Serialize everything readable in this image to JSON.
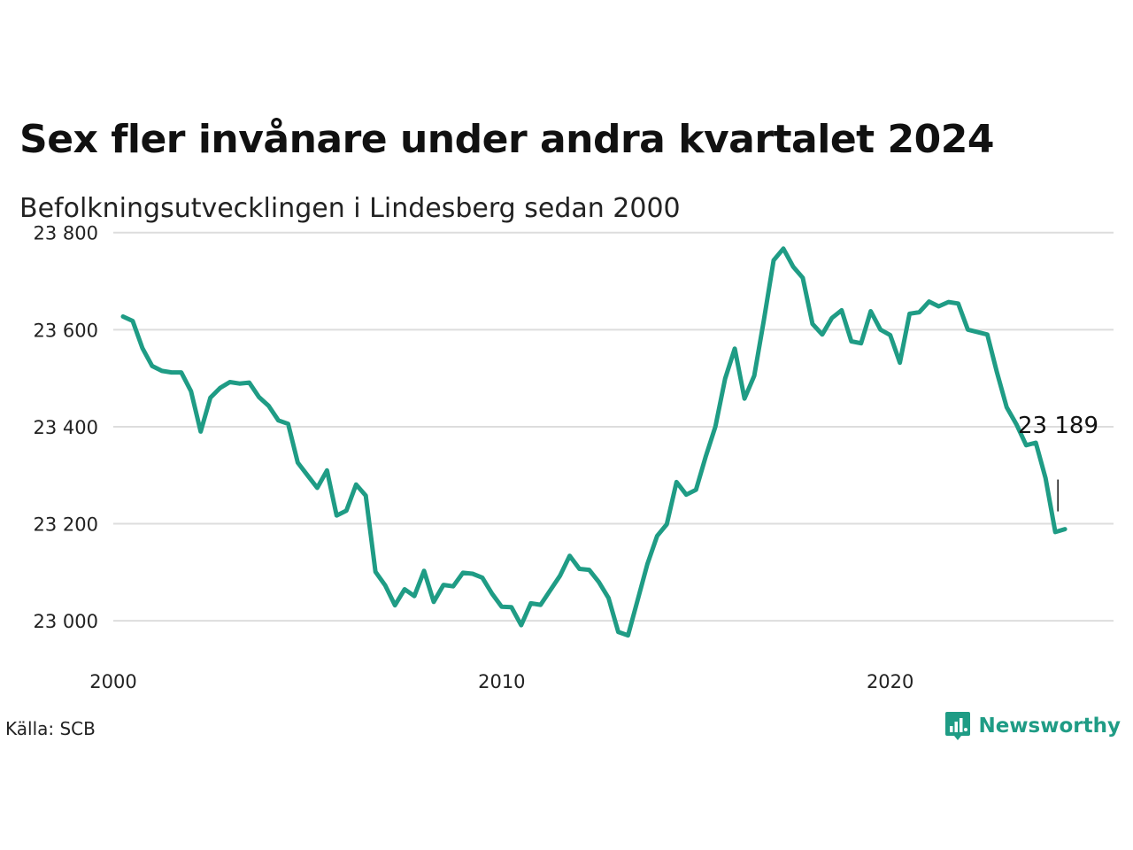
{
  "header": {
    "title": "Sex fler invånare under andra kvartalet 2024",
    "subtitle": "Befolkningsutvecklingen i Lindesberg sedan 2000"
  },
  "footer": {
    "source": "Källa: SCB",
    "brand": "Newsworthy"
  },
  "colors": {
    "line": "#1f9c85",
    "grid": "#dddddd",
    "brand": "#1f9c85"
  },
  "chart_data": {
    "type": "line",
    "title": "Sex fler invånare under andra kvartalet 2024",
    "subtitle": "Befolkningsutvecklingen i Lindesberg sedan 2000",
    "xlim": [
      2000,
      2025.75
    ],
    "ylim": [
      22920,
      23805
    ],
    "x_ticks": [
      {
        "value": 2000,
        "label": "2000"
      },
      {
        "value": 2010,
        "label": "2010"
      },
      {
        "value": 2020,
        "label": "2020"
      }
    ],
    "y_ticks": [
      {
        "value": 23000,
        "label": "23 000"
      },
      {
        "value": 23200,
        "label": "23 200"
      },
      {
        "value": 23400,
        "label": "23 400"
      },
      {
        "value": 23600,
        "label": "23 600"
      },
      {
        "value": 23800,
        "label": "23 800"
      }
    ],
    "grid": true,
    "annotation": {
      "label": "23 189",
      "x": 2024.25,
      "y": 23189
    },
    "series": [
      {
        "values": [
          [
            2000.25,
            23627
          ],
          [
            2000.5,
            23618
          ],
          [
            2000.75,
            23562
          ],
          [
            2001.0,
            23525
          ],
          [
            2001.25,
            23515
          ],
          [
            2001.5,
            23512
          ],
          [
            2001.75,
            23512
          ],
          [
            2002.0,
            23473
          ],
          [
            2002.25,
            23390
          ],
          [
            2002.5,
            23460
          ],
          [
            2002.75,
            23480
          ],
          [
            2003.0,
            23492
          ],
          [
            2003.25,
            23489
          ],
          [
            2003.5,
            23491
          ],
          [
            2003.75,
            23461
          ],
          [
            2004.0,
            23443
          ],
          [
            2004.25,
            23413
          ],
          [
            2004.5,
            23406
          ],
          [
            2004.75,
            23326
          ],
          [
            2005.0,
            23300
          ],
          [
            2005.25,
            23274
          ],
          [
            2005.5,
            23310
          ],
          [
            2005.75,
            23217
          ],
          [
            2006.0,
            23227
          ],
          [
            2006.25,
            23281
          ],
          [
            2006.5,
            23258
          ],
          [
            2006.75,
            23101
          ],
          [
            2007.0,
            23073
          ],
          [
            2007.25,
            23032
          ],
          [
            2007.5,
            23065
          ],
          [
            2007.75,
            23051
          ],
          [
            2008.0,
            23103
          ],
          [
            2008.25,
            23039
          ],
          [
            2008.5,
            23074
          ],
          [
            2008.75,
            23071
          ],
          [
            2009.0,
            23099
          ],
          [
            2009.25,
            23097
          ],
          [
            2009.5,
            23089
          ],
          [
            2009.75,
            23056
          ],
          [
            2010.0,
            23029
          ],
          [
            2010.25,
            23028
          ],
          [
            2010.5,
            22991
          ],
          [
            2010.75,
            23036
          ],
          [
            2011.0,
            23033
          ],
          [
            2011.25,
            23063
          ],
          [
            2011.5,
            23093
          ],
          [
            2011.75,
            23134
          ],
          [
            2012.0,
            23107
          ],
          [
            2012.25,
            23105
          ],
          [
            2012.5,
            23080
          ],
          [
            2012.75,
            23047
          ],
          [
            2013.0,
            22977
          ],
          [
            2013.25,
            22970
          ],
          [
            2013.5,
            23043
          ],
          [
            2013.75,
            23117
          ],
          [
            2014.0,
            23175
          ],
          [
            2014.25,
            23199
          ],
          [
            2014.5,
            23286
          ],
          [
            2014.75,
            23260
          ],
          [
            2015.0,
            23270
          ],
          [
            2015.25,
            23338
          ],
          [
            2015.5,
            23400
          ],
          [
            2015.75,
            23499
          ],
          [
            2016.0,
            23561
          ],
          [
            2016.25,
            23458
          ],
          [
            2016.5,
            23505
          ],
          [
            2016.75,
            23620
          ],
          [
            2017.0,
            23743
          ],
          [
            2017.25,
            23767
          ],
          [
            2017.5,
            23730
          ],
          [
            2017.75,
            23707
          ],
          [
            2018.0,
            23612
          ],
          [
            2018.25,
            23590
          ],
          [
            2018.5,
            23624
          ],
          [
            2018.75,
            23640
          ],
          [
            2019.0,
            23576
          ],
          [
            2019.25,
            23572
          ],
          [
            2019.5,
            23638
          ],
          [
            2019.75,
            23600
          ],
          [
            2020.0,
            23589
          ],
          [
            2020.25,
            23532
          ],
          [
            2020.5,
            23633
          ],
          [
            2020.75,
            23636
          ],
          [
            2021.0,
            23658
          ],
          [
            2021.25,
            23648
          ],
          [
            2021.5,
            23657
          ],
          [
            2021.75,
            23654
          ],
          [
            2022.0,
            23600
          ],
          [
            2022.25,
            23595
          ],
          [
            2022.5,
            23590
          ],
          [
            2022.75,
            23512
          ],
          [
            2023.0,
            23440
          ],
          [
            2023.25,
            23405
          ],
          [
            2023.5,
            23362
          ],
          [
            2023.75,
            23367
          ],
          [
            2024.0,
            23294
          ],
          [
            2024.25,
            23183
          ],
          [
            2024.5,
            23189
          ]
        ]
      }
    ]
  }
}
